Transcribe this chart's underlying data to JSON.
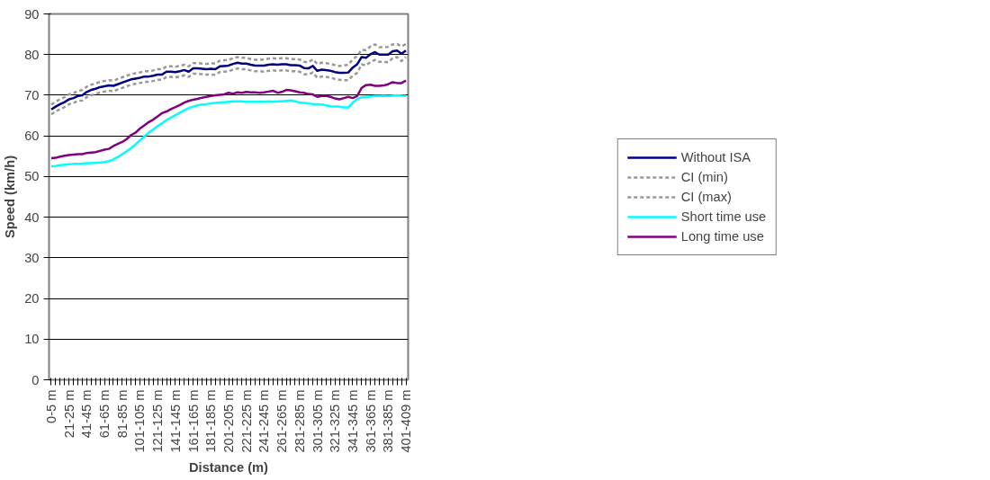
{
  "chart_data": {
    "type": "line",
    "xlabel": "Distance (m)",
    "ylabel": "Speed (km/h)",
    "categories": [
      "0-5 m",
      null,
      null,
      null,
      "21-25 m",
      null,
      null,
      null,
      "41-45 m",
      null,
      null,
      null,
      "61-65 m",
      null,
      null,
      null,
      "81-85 m",
      null,
      null,
      null,
      "101-105 m",
      null,
      null,
      null,
      "121-125 m",
      null,
      null,
      null,
      "141-145 m",
      null,
      null,
      null,
      "161-165 m",
      null,
      null,
      null,
      "181-185 m",
      null,
      null,
      null,
      "201-205 m",
      null,
      null,
      null,
      "221-225 m",
      null,
      null,
      null,
      "241-245 m",
      null,
      null,
      null,
      "261-265 m",
      null,
      null,
      null,
      "281-285 m",
      null,
      null,
      null,
      "301-305 m",
      null,
      null,
      null,
      "321-325 m",
      null,
      null,
      null,
      "341-345 m",
      null,
      null,
      null,
      "361-365 m",
      null,
      null,
      null,
      "381-385 m",
      null,
      null,
      null,
      "401-409 m"
    ],
    "ylim": [
      0,
      90
    ],
    "yticks": [
      0,
      10,
      20,
      30,
      40,
      50,
      60,
      70,
      80,
      90
    ],
    "grid": "y",
    "legend": "right",
    "marker": "none",
    "series": [
      {
        "name": "Without ISA",
        "color": "#000080",
        "line_style": "solid",
        "values": [
          66.5,
          67.2,
          67.8,
          68.3,
          69.0,
          69.3,
          69.8,
          70.0,
          70.8,
          71.3,
          71.6,
          72.0,
          72.2,
          72.4,
          72.3,
          72.7,
          73.1,
          73.5,
          73.9,
          74.1,
          74.3,
          74.6,
          74.6,
          74.8,
          75.1,
          75.1,
          75.8,
          75.8,
          75.7,
          75.9,
          76.2,
          75.8,
          76.6,
          76.6,
          76.5,
          76.4,
          76.5,
          76.4,
          77.1,
          77.2,
          77.3,
          77.7,
          78.0,
          77.8,
          77.8,
          77.5,
          77.3,
          77.3,
          77.3,
          77.5,
          77.6,
          77.5,
          77.6,
          77.6,
          77.4,
          77.4,
          77.3,
          76.7,
          76.6,
          77.2,
          76.0,
          76.3,
          76.2,
          76.0,
          75.7,
          75.5,
          75.5,
          75.6,
          76.8,
          77.6,
          79.4,
          79.2,
          80.1,
          80.6,
          80.0,
          80.0,
          80.0,
          80.8,
          81.0,
          80.2,
          81.0
        ]
      },
      {
        "name": "CI (min)",
        "color": "#999999",
        "line_style": "dashed",
        "values": [
          65.3,
          66.0,
          66.6,
          67.1,
          67.8,
          68.1,
          68.6,
          68.7,
          69.5,
          70.0,
          70.3,
          70.7,
          70.9,
          71.1,
          71.0,
          71.4,
          71.8,
          72.2,
          72.6,
          72.8,
          73.0,
          73.3,
          73.3,
          73.5,
          73.8,
          73.8,
          74.5,
          74.5,
          74.4,
          74.6,
          74.9,
          74.5,
          75.3,
          75.3,
          75.2,
          75.1,
          75.1,
          75.0,
          75.7,
          75.8,
          75.9,
          76.3,
          76.6,
          76.4,
          76.4,
          76.1,
          75.9,
          75.9,
          75.8,
          76.0,
          76.1,
          76.0,
          76.1,
          76.1,
          75.9,
          75.9,
          75.8,
          75.2,
          75.1,
          75.6,
          74.3,
          74.6,
          74.5,
          74.3,
          74.0,
          73.8,
          73.7,
          73.7,
          74.8,
          75.5,
          77.6,
          77.3,
          78.2,
          78.7,
          78.2,
          78.2,
          78.1,
          79.1,
          79.4,
          78.4,
          79.4
        ]
      },
      {
        "name": "CI (max)",
        "color": "#999999",
        "line_style": "dashed",
        "values": [
          67.7,
          68.4,
          69.0,
          69.5,
          70.2,
          70.5,
          71.0,
          71.3,
          72.1,
          72.6,
          72.9,
          73.3,
          73.5,
          73.7,
          73.6,
          74.0,
          74.4,
          74.8,
          75.2,
          75.4,
          75.6,
          75.9,
          75.9,
          76.1,
          76.4,
          76.4,
          77.1,
          77.1,
          77.0,
          77.2,
          77.5,
          77.1,
          77.9,
          77.9,
          77.8,
          77.7,
          77.9,
          77.8,
          78.5,
          78.6,
          78.7,
          79.1,
          79.4,
          79.2,
          79.2,
          78.9,
          78.7,
          78.7,
          78.8,
          79.0,
          79.1,
          79.0,
          79.1,
          79.1,
          78.9,
          78.9,
          78.8,
          78.2,
          78.1,
          78.8,
          77.7,
          78.0,
          77.9,
          77.7,
          77.4,
          77.2,
          77.3,
          77.5,
          78.8,
          79.7,
          81.2,
          81.1,
          82.0,
          82.5,
          81.8,
          81.8,
          81.9,
          82.5,
          82.6,
          82.0,
          82.6
        ]
      },
      {
        "name": "Short time use",
        "color": "#00ffff",
        "line_style": "solid",
        "values": [
          52.5,
          52.6,
          52.8,
          52.9,
          53.0,
          53.1,
          53.1,
          53.2,
          53.3,
          53.3,
          53.4,
          53.4,
          53.6,
          53.8,
          54.2,
          54.8,
          55.5,
          56.2,
          57.0,
          57.9,
          58.9,
          59.9,
          60.8,
          61.6,
          62.4,
          63.1,
          63.9,
          64.5,
          65.1,
          65.7,
          66.3,
          66.8,
          67.2,
          67.5,
          67.7,
          67.8,
          68.0,
          68.1,
          68.2,
          68.3,
          68.4,
          68.5,
          68.5,
          68.5,
          68.4,
          68.4,
          68.4,
          68.4,
          68.4,
          68.5,
          68.4,
          68.5,
          68.5,
          68.6,
          68.7,
          68.5,
          68.2,
          68.1,
          68.0,
          67.8,
          67.8,
          67.7,
          67.5,
          67.3,
          67.2,
          67.2,
          67.0,
          67.0,
          68.2,
          69.0,
          69.5,
          69.6,
          69.7,
          69.8,
          69.8,
          69.9,
          69.8,
          69.9,
          70.0,
          69.9,
          69.8
        ]
      },
      {
        "name": "Long time use",
        "color": "#800080",
        "line_style": "solid",
        "values": [
          54.5,
          54.6,
          54.9,
          55.1,
          55.3,
          55.4,
          55.5,
          55.5,
          55.8,
          55.9,
          56.0,
          56.3,
          56.6,
          56.8,
          57.5,
          58.0,
          58.5,
          59.2,
          60.2,
          60.8,
          61.8,
          62.6,
          63.4,
          64.0,
          64.8,
          65.6,
          66.0,
          66.6,
          67.1,
          67.6,
          68.2,
          68.6,
          68.9,
          69.1,
          69.4,
          69.6,
          69.8,
          70.0,
          70.1,
          70.2,
          70.6,
          70.4,
          70.7,
          70.6,
          70.8,
          70.7,
          70.7,
          70.6,
          70.7,
          70.9,
          71.1,
          70.6,
          70.8,
          71.3,
          71.2,
          71.0,
          70.7,
          70.6,
          70.3,
          70.2,
          69.6,
          69.8,
          69.8,
          69.6,
          69.2,
          69.0,
          69.3,
          69.6,
          69.3,
          69.8,
          71.8,
          72.5,
          72.6,
          72.3,
          72.3,
          72.4,
          72.7,
          73.2,
          73.0,
          73.0,
          73.6
        ]
      }
    ]
  }
}
